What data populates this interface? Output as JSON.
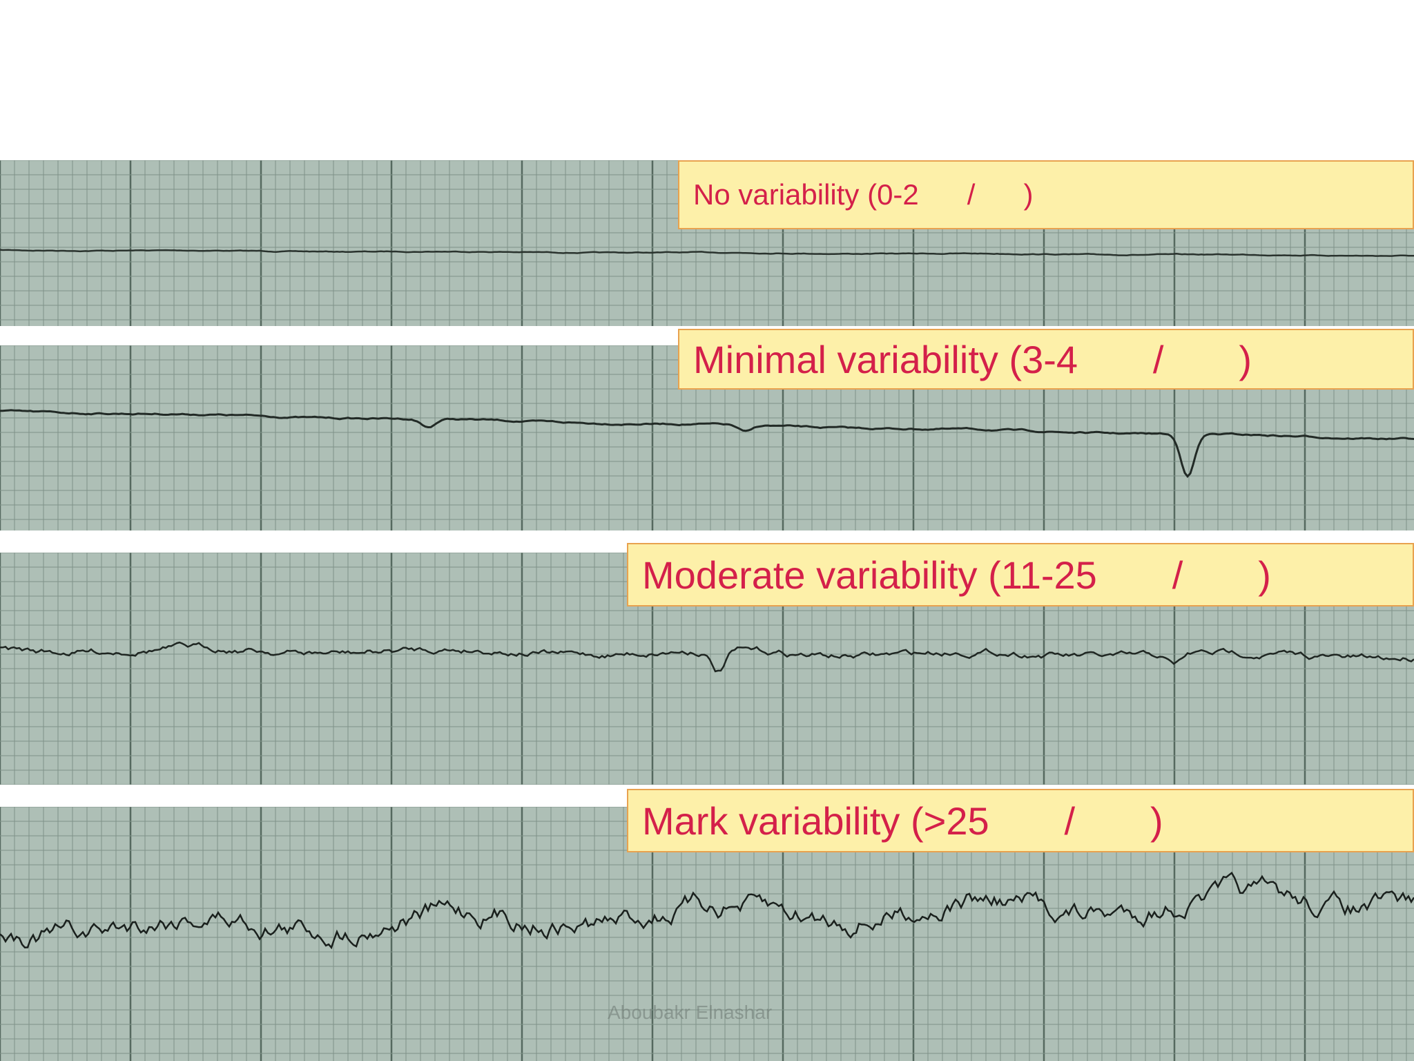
{
  "panels": [
    {
      "label": "No variability (0-2      /      )"
    },
    {
      "label": "Minimal variability (3-4       /       )"
    },
    {
      "label": "Moderate variability (11-25       /       )"
    },
    {
      "label": "Mark variability (>25       /       )"
    }
  ],
  "watermark": "Aboubakr Elnashar",
  "colors": {
    "paper": "#aebfb6",
    "grid": "#6f8479",
    "trace": "#1f2622",
    "label_bg": "#fdf0a9",
    "label_border": "#e8a24f",
    "label_text": "#d4204a"
  }
}
